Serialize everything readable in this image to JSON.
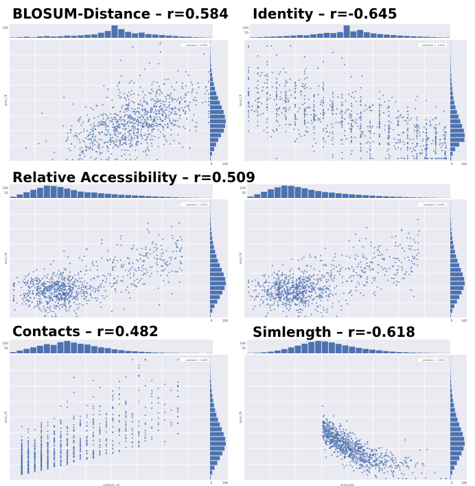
{
  "panels": [
    {
      "title": "BLOSUM-Distance – r=0.584",
      "legend": "pearsonr = 0.584",
      "xlabel": "blosum_dist",
      "ylabel": "local_CR",
      "hist_top_ticks": [
        "100"
      ],
      "hist_right_ticks": [
        "0",
        "100"
      ],
      "chart_data": {
        "type": "scatter",
        "title": "BLOSUM-Distance – r=0.584",
        "xlabel": "blosum_dist",
        "ylabel": "local_CR",
        "pearson_r": 0.584,
        "pattern": "positive",
        "xlim": [
          -3,
          4
        ],
        "ylim": [
          0,
          7
        ],
        "marginal_top": [
          3,
          5,
          9,
          4,
          11,
          14,
          10,
          12,
          18,
          16,
          20,
          24,
          28,
          41,
          55,
          100,
          70,
          48,
          36,
          42,
          30,
          27,
          22,
          18,
          14,
          10,
          8,
          5,
          3,
          2
        ],
        "marginal_right": [
          4,
          12,
          26,
          38,
          52,
          70,
          88,
          96,
          100,
          94,
          86,
          74,
          62,
          50,
          40,
          31,
          24,
          18,
          13,
          9,
          6,
          4,
          3,
          2,
          1,
          1
        ]
      }
    },
    {
      "title": "Identity – r=-0.645",
      "legend": "pearsonr = -0.645",
      "xlabel": "Identity",
      "ylabel": "local_CR",
      "hist_top_ticks": [
        "100",
        "50"
      ],
      "hist_right_ticks": [
        "0",
        "100"
      ],
      "chart_data": {
        "type": "scatter",
        "title": "Identity – r=-0.645",
        "xlabel": "Identity",
        "ylabel": "local_CR",
        "pearson_r": -0.645,
        "pattern": "negative-columns",
        "xlim": [
          -2.5,
          2.5
        ],
        "ylim": [
          0,
          7
        ],
        "marginal_top": [
          4,
          6,
          8,
          10,
          12,
          15,
          18,
          22,
          20,
          28,
          33,
          40,
          38,
          46,
          100,
          52,
          64,
          45,
          36,
          30,
          26,
          22,
          18,
          15,
          12,
          10,
          8,
          6,
          4,
          3
        ],
        "marginal_right": [
          6,
          16,
          34,
          62,
          98,
          100,
          94,
          82,
          70,
          58,
          46,
          36,
          28,
          22,
          17,
          13,
          10,
          8,
          6,
          4,
          3,
          2,
          2,
          1,
          1,
          1
        ]
      }
    },
    {
      "title": "Relative Accessibility – r=0.509",
      "legend": "pearsonr = 0.509",
      "xlabel": "",
      "ylabel": "local_CR",
      "hist_top_ticks": [
        "100",
        "50"
      ],
      "hist_right_ticks": [
        "0",
        "100"
      ],
      "chart_data": {
        "type": "scatter",
        "title": "Relative Accessibility – r=0.509",
        "xlabel": "",
        "ylabel": "local_CR",
        "pearson_r": 0.509,
        "pattern": "blob",
        "xlim": [
          0,
          6
        ],
        "ylim": [
          0,
          8
        ],
        "marginal_top": [
          10,
          28,
          46,
          66,
          82,
          100,
          97,
          88,
          76,
          64,
          52,
          46,
          44,
          38,
          34,
          30,
          26,
          24,
          20,
          18,
          15,
          12,
          10,
          8,
          6,
          4,
          3,
          2,
          1,
          1
        ],
        "marginal_right": [
          4,
          14,
          28,
          46,
          62,
          78,
          92,
          100,
          96,
          86,
          74,
          62,
          50,
          40,
          32,
          25,
          19,
          14,
          10,
          7,
          5,
          3,
          2,
          1,
          1,
          1
        ]
      }
    },
    {
      "title": "",
      "legend": "pearsonr = 0.463",
      "xlabel": "",
      "ylabel": "local_CR",
      "hist_top_ticks": [
        "100",
        "50"
      ],
      "hist_right_ticks": [
        "0",
        "100"
      ],
      "chart_data": {
        "type": "scatter",
        "title": "",
        "xlabel": "",
        "ylabel": "local_CR",
        "pearson_r": 0.463,
        "pattern": "blob",
        "xlim": [
          0,
          6
        ],
        "ylim": [
          0,
          8
        ],
        "marginal_top": [
          12,
          30,
          50,
          70,
          86,
          100,
          98,
          88,
          78,
          66,
          56,
          48,
          44,
          38,
          33,
          29,
          26,
          22,
          19,
          16,
          13,
          11,
          9,
          7,
          5,
          4,
          3,
          2,
          1,
          1
        ],
        "marginal_right": [
          4,
          14,
          28,
          46,
          62,
          78,
          92,
          100,
          96,
          86,
          74,
          62,
          50,
          40,
          32,
          25,
          19,
          14,
          10,
          7,
          5,
          3,
          2,
          1,
          1,
          1
        ]
      }
    },
    {
      "title": "Contacts – r=0.482",
      "legend": "pearsonr = 0.482",
      "xlabel": "contacts_all",
      "ylabel": "local_CR",
      "hist_top_ticks": [
        "100",
        "50"
      ],
      "hist_right_ticks": [
        "0",
        "100"
      ],
      "chart_data": {
        "type": "scatter",
        "title": "Contacts – r=0.482",
        "xlabel": "contacts_all",
        "ylabel": "local_CR",
        "pearson_r": 0.482,
        "pattern": "positive-columns",
        "xlim": [
          -2,
          5
        ],
        "ylim": [
          0,
          8
        ],
        "marginal_top": [
          6,
          14,
          22,
          30,
          38,
          46,
          42,
          56,
          62,
          54,
          48,
          44,
          36,
          30,
          26,
          20,
          16,
          12,
          10,
          8,
          6,
          4,
          3,
          2,
          2,
          1,
          1,
          1,
          0,
          1
        ],
        "marginal_right": [
          4,
          14,
          28,
          46,
          62,
          78,
          92,
          100,
          96,
          86,
          74,
          62,
          50,
          40,
          32,
          25,
          19,
          14,
          10,
          7,
          5,
          3,
          2,
          1,
          1,
          1
        ]
      }
    },
    {
      "title": "Simlength – r=-0.618",
      "legend": "pearsonr = -0.618",
      "xlabel": "simlength",
      "ylabel": "local_CR",
      "hist_top_ticks": [
        "100",
        "50"
      ],
      "hist_right_ticks": [
        "0",
        "100"
      ],
      "chart_data": {
        "type": "scatter",
        "title": "Simlength – r=-0.618",
        "xlabel": "simlength",
        "ylabel": "local_CR",
        "pearson_r": -0.618,
        "pattern": "decay",
        "xlim": [
          -2,
          4
        ],
        "ylim": [
          0,
          8
        ],
        "marginal_top": [
          2,
          4,
          8,
          14,
          22,
          34,
          48,
          62,
          78,
          92,
          100,
          96,
          88,
          76,
          64,
          54,
          44,
          36,
          30,
          24,
          18,
          14,
          10,
          8,
          6,
          4,
          3,
          2,
          1,
          1
        ],
        "marginal_right": [
          4,
          14,
          28,
          46,
          62,
          78,
          92,
          100,
          96,
          86,
          74,
          62,
          50,
          40,
          32,
          25,
          19,
          14,
          10,
          7,
          5,
          3,
          2,
          1,
          1,
          1
        ]
      }
    }
  ],
  "colors": {
    "point": "#4c72b0",
    "bar": "#4c72b0",
    "plot_bg": "#eaeaf2",
    "grid": "#ffffff",
    "figure_bg": "#ffffff"
  }
}
